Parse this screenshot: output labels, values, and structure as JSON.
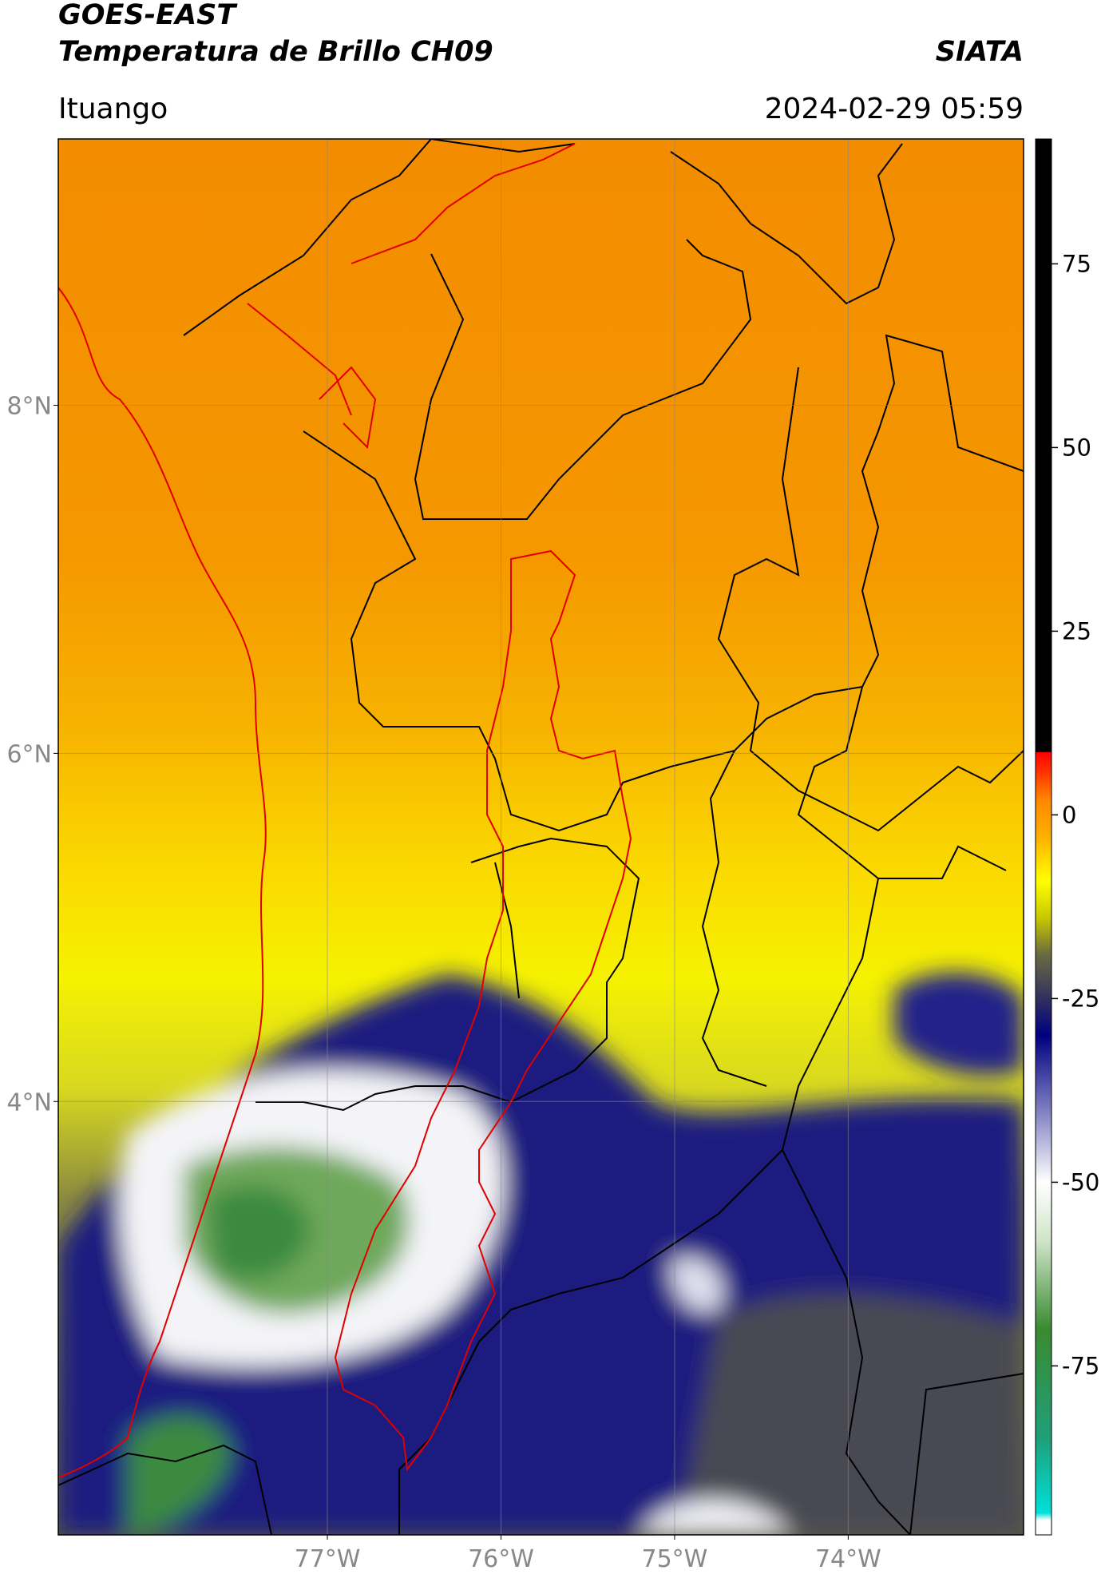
{
  "header": {
    "title": "GOES-EAST",
    "subtitle": "Temperatura de Brillo CH09",
    "source": "SIATA",
    "location": "Ituango",
    "timestamp": "2024-02-29 05:59"
  },
  "map": {
    "lon_range": [
      -78.55,
      -72.99
    ],
    "lat_range": [
      1.51,
      9.53
    ],
    "lat_ticks": [
      {
        "value": 8,
        "label": "8°N"
      },
      {
        "value": 6,
        "label": "6°N"
      },
      {
        "value": 4,
        "label": "4°N"
      }
    ],
    "lon_ticks": [
      {
        "value": -77,
        "label": "77°W"
      },
      {
        "value": -76,
        "label": "76°W"
      },
      {
        "value": -75,
        "label": "75°W"
      },
      {
        "value": -74,
        "label": "74°W"
      }
    ],
    "grid": true
  },
  "colorbar": {
    "range": [
      -98,
      92
    ],
    "ticks": [
      75,
      50,
      25,
      0,
      -25,
      -50,
      -75
    ],
    "stops": [
      {
        "value": -98,
        "color": "#ffffff"
      },
      {
        "value": -96,
        "color": "#ffffff"
      },
      {
        "value": -95,
        "color": "#00e0d8"
      },
      {
        "value": -85,
        "color": "#1fa07a"
      },
      {
        "value": -70,
        "color": "#3a8a30"
      },
      {
        "value": -58,
        "color": "#d0e4c8"
      },
      {
        "value": -50,
        "color": "#ffffff"
      },
      {
        "value": -40,
        "color": "#7c7cc0"
      },
      {
        "value": -30,
        "color": "#000080"
      },
      {
        "value": -24,
        "color": "#3a3a5a"
      },
      {
        "value": -19,
        "color": "#6b6b40"
      },
      {
        "value": -14,
        "color": "#c8c800"
      },
      {
        "value": -9,
        "color": "#ffff00"
      },
      {
        "value": -3,
        "color": "#ffb000"
      },
      {
        "value": 2,
        "color": "#ff8800"
      },
      {
        "value": 6,
        "color": "#ff3000"
      },
      {
        "value": 8.5,
        "color": "#ff0000"
      },
      {
        "value": 8.6,
        "color": "#000000"
      },
      {
        "value": 92,
        "color": "#000000"
      }
    ]
  }
}
